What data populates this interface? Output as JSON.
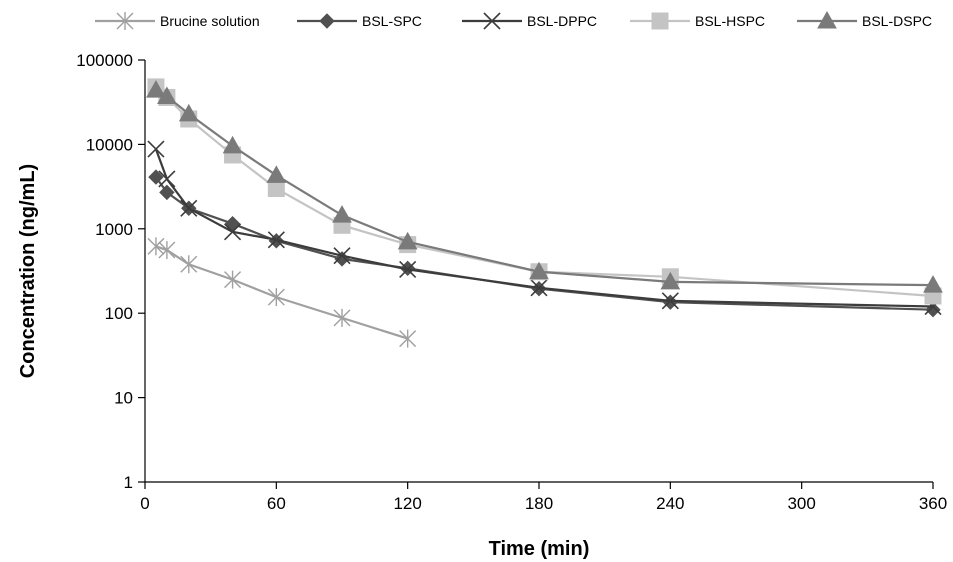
{
  "chart_data": {
    "type": "line",
    "xlabel": "Time (min)",
    "ylabel": "Concentration (ng/mL)",
    "xlim": [
      0,
      360
    ],
    "ylim": [
      1,
      100000
    ],
    "yscale": "log",
    "xticks": [
      0,
      60,
      120,
      180,
      240,
      300,
      360
    ],
    "yticks": [
      1,
      10,
      100,
      1000,
      10000,
      100000
    ],
    "xtick_labels": [
      "0",
      "60",
      "120",
      "180",
      "240",
      "300",
      "360"
    ],
    "ytick_labels": [
      "1",
      "10",
      "100",
      "1000",
      "10000",
      "100000"
    ],
    "grid": false,
    "legend": "top",
    "series": [
      {
        "name": "Brucine solution",
        "marker": "asterisk",
        "color": "#a0a0a0",
        "x": [
          5,
          10,
          20,
          40,
          60,
          90,
          120
        ],
        "y": [
          620,
          560,
          380,
          250,
          155,
          88,
          50
        ]
      },
      {
        "name": "BSL-SPC",
        "marker": "diamond",
        "color": "#505050",
        "x": [
          5,
          10,
          20,
          40,
          60,
          90,
          120,
          180,
          240,
          360
        ],
        "y": [
          4100,
          2700,
          1750,
          1150,
          720,
          440,
          340,
          195,
          135,
          110
        ]
      },
      {
        "name": "BSL-DPPC",
        "marker": "x",
        "color": "#3c3c3c",
        "x": [
          5,
          10,
          20,
          40,
          60,
          90,
          120,
          180,
          240,
          360
        ],
        "y": [
          8800,
          3900,
          1750,
          920,
          740,
          480,
          330,
          200,
          140,
          120
        ]
      },
      {
        "name": "BSL-HSPC",
        "marker": "square",
        "color": "#c4c4c4",
        "x": [
          5,
          10,
          20,
          40,
          60,
          90,
          120,
          180,
          240,
          360
        ],
        "y": [
          48000,
          36000,
          20000,
          7500,
          3000,
          1100,
          650,
          310,
          270,
          160
        ]
      },
      {
        "name": "BSL-DSPC",
        "marker": "triangle",
        "color": "#7a7a7a",
        "x": [
          5,
          10,
          20,
          40,
          60,
          90,
          120,
          180,
          240,
          360
        ],
        "y": [
          44000,
          37000,
          23000,
          9600,
          4300,
          1450,
          700,
          310,
          235,
          215
        ]
      }
    ]
  }
}
